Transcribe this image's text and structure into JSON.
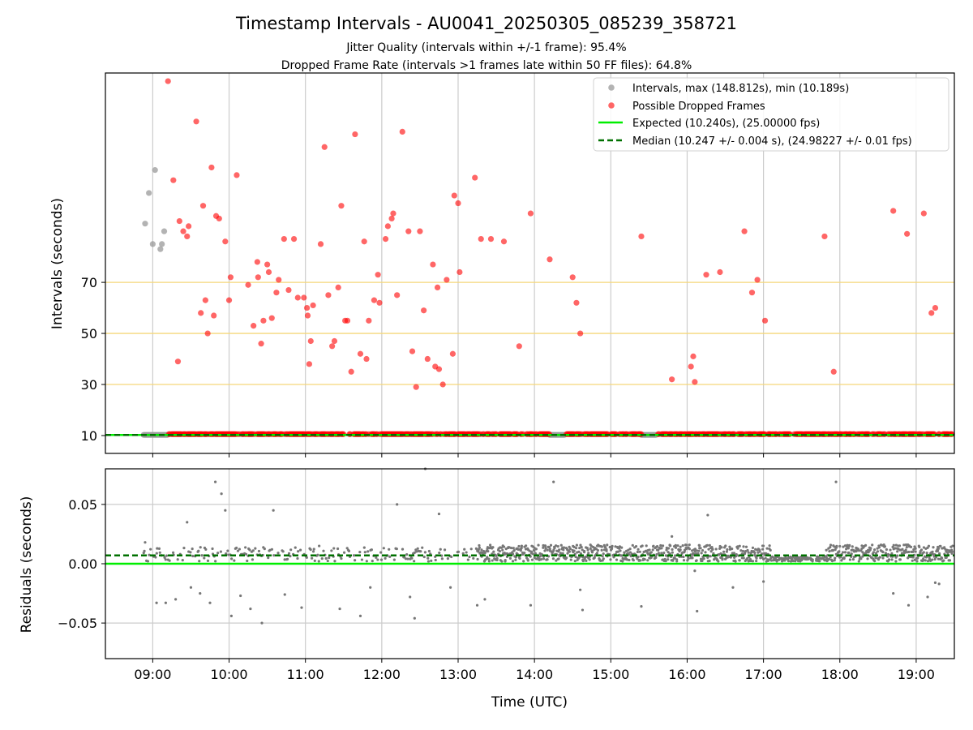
{
  "figure": {
    "title": "Timestamp Intervals - AU0041_20250305_085239_358721",
    "subtitle_1": "Jitter Quality (intervals within +/-1 frame): 95.4%",
    "subtitle_2": "Dropped Frame Rate (intervals >1 frames late within 50 FF files): 64.8%"
  },
  "colors": {
    "intervals": "#999999",
    "dropped": "#ff0000",
    "expected": "#00ee00",
    "median": "#007000",
    "threshold": "#f5d77a",
    "residual": "#777777",
    "grid": "#cccccc"
  },
  "chart_data": [
    {
      "type": "scatter",
      "panel": "top",
      "ylabel": "Intervals (seconds)",
      "yticks": [
        10,
        30,
        50,
        70
      ],
      "ylim": [
        3,
        152
      ],
      "xlim_hours": [
        8.38,
        19.5
      ],
      "threshold_lines": [
        30,
        50,
        70
      ],
      "legend_position": "top-right",
      "legend": [
        "Intervals, max (148.812s), min (10.189s)",
        "Possible Dropped Frames",
        "Expected (10.240s), (25.00000 fps)",
        "Median (10.247 +/- 0.004 s), (24.98227 +/- 0.01 fps)"
      ],
      "expected_value": 10.24,
      "median_value": 10.247,
      "intervals_high": [
        [
          8.9,
          93
        ],
        [
          8.95,
          105
        ],
        [
          9.03,
          114
        ],
        [
          9.0,
          85
        ],
        [
          9.1,
          83
        ],
        [
          9.12,
          85
        ],
        [
          9.15,
          90
        ]
      ],
      "intervals_baseline_segments": [
        [
          8.88,
          9.2
        ],
        [
          14.2,
          14.4
        ],
        [
          15.4,
          15.6
        ]
      ],
      "dropped_high": [
        [
          9.2,
          148.8
        ],
        [
          9.27,
          110
        ],
        [
          9.33,
          39
        ],
        [
          9.35,
          94
        ],
        [
          9.4,
          90
        ],
        [
          9.45,
          88
        ],
        [
          9.47,
          92
        ],
        [
          9.57,
          133
        ],
        [
          9.63,
          58
        ],
        [
          9.66,
          100
        ],
        [
          9.69,
          63
        ],
        [
          9.72,
          50
        ],
        [
          9.77,
          115
        ],
        [
          9.8,
          57
        ],
        [
          9.83,
          96
        ],
        [
          9.87,
          95
        ],
        [
          9.95,
          86
        ],
        [
          10.02,
          72
        ],
        [
          10.0,
          63
        ],
        [
          10.1,
          112
        ],
        [
          10.25,
          69
        ],
        [
          10.32,
          53
        ],
        [
          10.37,
          78
        ],
        [
          10.38,
          72
        ],
        [
          10.42,
          46
        ],
        [
          10.45,
          55
        ],
        [
          10.5,
          77
        ],
        [
          10.52,
          74
        ],
        [
          10.56,
          56
        ],
        [
          10.62,
          66
        ],
        [
          10.65,
          71
        ],
        [
          10.72,
          87
        ],
        [
          10.78,
          67
        ],
        [
          10.85,
          87
        ],
        [
          10.9,
          64
        ],
        [
          10.98,
          64
        ],
        [
          11.02,
          60
        ],
        [
          11.03,
          57
        ],
        [
          11.05,
          38
        ],
        [
          11.07,
          47
        ],
        [
          11.1,
          61
        ],
        [
          11.2,
          85
        ],
        [
          11.25,
          123
        ],
        [
          11.3,
          65
        ],
        [
          11.35,
          45
        ],
        [
          11.38,
          47
        ],
        [
          11.43,
          68
        ],
        [
          11.47,
          100
        ],
        [
          11.52,
          55
        ],
        [
          11.55,
          55
        ],
        [
          11.6,
          35
        ],
        [
          11.65,
          128
        ],
        [
          11.72,
          42
        ],
        [
          11.77,
          86
        ],
        [
          11.8,
          40
        ],
        [
          11.83,
          55
        ],
        [
          11.9,
          63
        ],
        [
          11.95,
          73
        ],
        [
          11.97,
          62
        ],
        [
          12.05,
          87
        ],
        [
          12.08,
          92
        ],
        [
          12.13,
          95
        ],
        [
          12.15,
          97
        ],
        [
          12.2,
          65
        ],
        [
          12.27,
          129
        ],
        [
          12.35,
          90
        ],
        [
          12.4,
          43
        ],
        [
          12.45,
          29
        ],
        [
          12.5,
          90
        ],
        [
          12.55,
          59
        ],
        [
          12.6,
          40
        ],
        [
          12.67,
          77
        ],
        [
          12.7,
          37
        ],
        [
          12.73,
          68
        ],
        [
          12.75,
          36
        ],
        [
          12.8,
          30
        ],
        [
          12.85,
          71
        ],
        [
          12.93,
          42
        ],
        [
          12.95,
          104
        ],
        [
          13.0,
          101
        ],
        [
          13.02,
          74
        ],
        [
          13.22,
          111
        ],
        [
          13.3,
          87
        ],
        [
          13.43,
          87
        ],
        [
          13.6,
          86
        ],
        [
          13.8,
          45
        ],
        [
          13.95,
          97
        ],
        [
          14.2,
          79
        ],
        [
          14.5,
          72
        ],
        [
          14.55,
          62
        ],
        [
          14.6,
          50
        ],
        [
          15.4,
          88
        ],
        [
          15.8,
          32
        ],
        [
          16.05,
          37
        ],
        [
          16.08,
          41
        ],
        [
          16.1,
          31
        ],
        [
          16.25,
          73
        ],
        [
          16.43,
          74
        ],
        [
          16.75,
          90
        ],
        [
          16.85,
          66
        ],
        [
          16.92,
          71
        ],
        [
          17.02,
          55
        ],
        [
          17.8,
          88
        ],
        [
          17.92,
          35
        ],
        [
          18.7,
          98
        ],
        [
          18.88,
          89
        ],
        [
          19.1,
          97
        ],
        [
          19.2,
          58
        ],
        [
          19.25,
          60
        ]
      ],
      "dropped_baseline_segments": [
        [
          9.2,
          14.2
        ],
        [
          14.42,
          15.4
        ],
        [
          15.62,
          19.48
        ]
      ]
    },
    {
      "type": "scatter",
      "panel": "bottom",
      "ylabel": "Residuals (seconds)",
      "xlabel": "Time (UTC)",
      "yticks": [
        "0.05",
        "0.00",
        "−0.05"
      ],
      "ytick_values": [
        0.05,
        0.0,
        -0.05
      ],
      "ylim": [
        -0.08,
        0.08
      ],
      "xticks": [
        "09:00",
        "10:00",
        "11:00",
        "12:00",
        "13:00",
        "14:00",
        "15:00",
        "16:00",
        "17:00",
        "18:00",
        "19:00"
      ],
      "xtick_hours": [
        9,
        10,
        11,
        12,
        13,
        14,
        15,
        16,
        17,
        18,
        19
      ],
      "expected_residual": 0.0,
      "median_residual": 0.007,
      "outliers": [
        [
          8.9,
          0.018
        ],
        [
          9.05,
          -0.033
        ],
        [
          9.17,
          -0.033
        ],
        [
          9.3,
          -0.03
        ],
        [
          9.45,
          0.035
        ],
        [
          9.5,
          -0.02
        ],
        [
          9.62,
          -0.025
        ],
        [
          9.75,
          -0.033
        ],
        [
          9.82,
          0.069
        ],
        [
          9.9,
          0.059
        ],
        [
          9.95,
          0.045
        ],
        [
          10.03,
          -0.044
        ],
        [
          10.15,
          -0.027
        ],
        [
          10.28,
          -0.038
        ],
        [
          10.43,
          -0.05
        ],
        [
          10.58,
          0.045
        ],
        [
          10.73,
          -0.026
        ],
        [
          10.95,
          -0.037
        ],
        [
          11.18,
          0.015
        ],
        [
          11.45,
          -0.038
        ],
        [
          11.72,
          -0.044
        ],
        [
          11.85,
          -0.02
        ],
        [
          12.2,
          0.05
        ],
        [
          12.37,
          -0.028
        ],
        [
          12.43,
          -0.046
        ],
        [
          12.57,
          0.08
        ],
        [
          12.75,
          0.042
        ],
        [
          12.9,
          -0.02
        ],
        [
          13.25,
          -0.035
        ],
        [
          13.35,
          -0.03
        ],
        [
          13.95,
          -0.035
        ],
        [
          14.25,
          0.069
        ],
        [
          14.6,
          -0.022
        ],
        [
          14.63,
          -0.039
        ],
        [
          15.4,
          -0.036
        ],
        [
          15.8,
          0.023
        ],
        [
          16.1,
          -0.006
        ],
        [
          16.13,
          -0.04
        ],
        [
          16.27,
          0.041
        ],
        [
          16.6,
          -0.02
        ],
        [
          17.0,
          -0.015
        ],
        [
          17.82,
          0.003
        ],
        [
          17.95,
          0.069
        ],
        [
          18.7,
          -0.025
        ],
        [
          18.9,
          -0.035
        ],
        [
          19.15,
          -0.028
        ],
        [
          19.25,
          -0.016
        ],
        [
          19.3,
          -0.017
        ]
      ]
    }
  ]
}
